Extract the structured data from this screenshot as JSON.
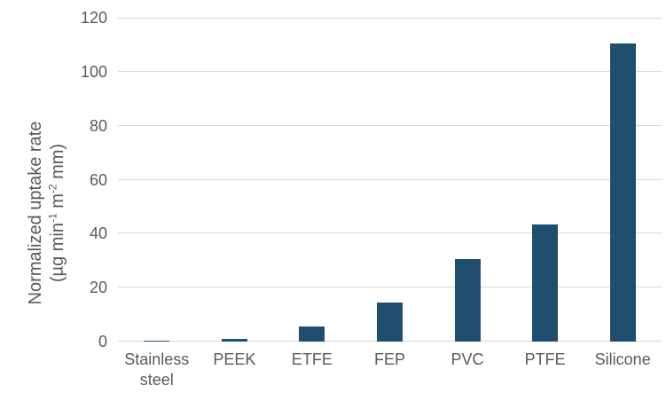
{
  "chart_data": {
    "type": "bar",
    "title": "",
    "xlabel": "",
    "ylabel": "Normalized uptake rate (µg min⁻¹ m⁻² mm)",
    "ylabel_line1": "Normalized uptake rate",
    "ylabel_line2_parts": [
      {
        "text": "(µg min"
      },
      {
        "text": "-1",
        "sup": true
      },
      {
        "text": " m"
      },
      {
        "text": "-2",
        "sup": true
      },
      {
        "text": " mm)"
      }
    ],
    "categories": [
      "Stainless steel",
      "PEEK",
      "ETFE",
      "FEP",
      "PVC",
      "PTFE",
      "Silicone"
    ],
    "tick_labels": [
      "Stainless\nsteel",
      "PEEK",
      "ETFE",
      "FEP",
      "PVC",
      "PTFE",
      "Silicone"
    ],
    "values": [
      0.3,
      1,
      5.5,
      14.5,
      30.5,
      43.5,
      110.5
    ],
    "ylim": [
      0,
      120
    ],
    "yticks": [
      0,
      20,
      40,
      60,
      80,
      100,
      120
    ],
    "grid": true,
    "legend": false,
    "bar_color": "#204E6E",
    "gridline_color": "#D9D9D9",
    "text_color": "#595959"
  }
}
